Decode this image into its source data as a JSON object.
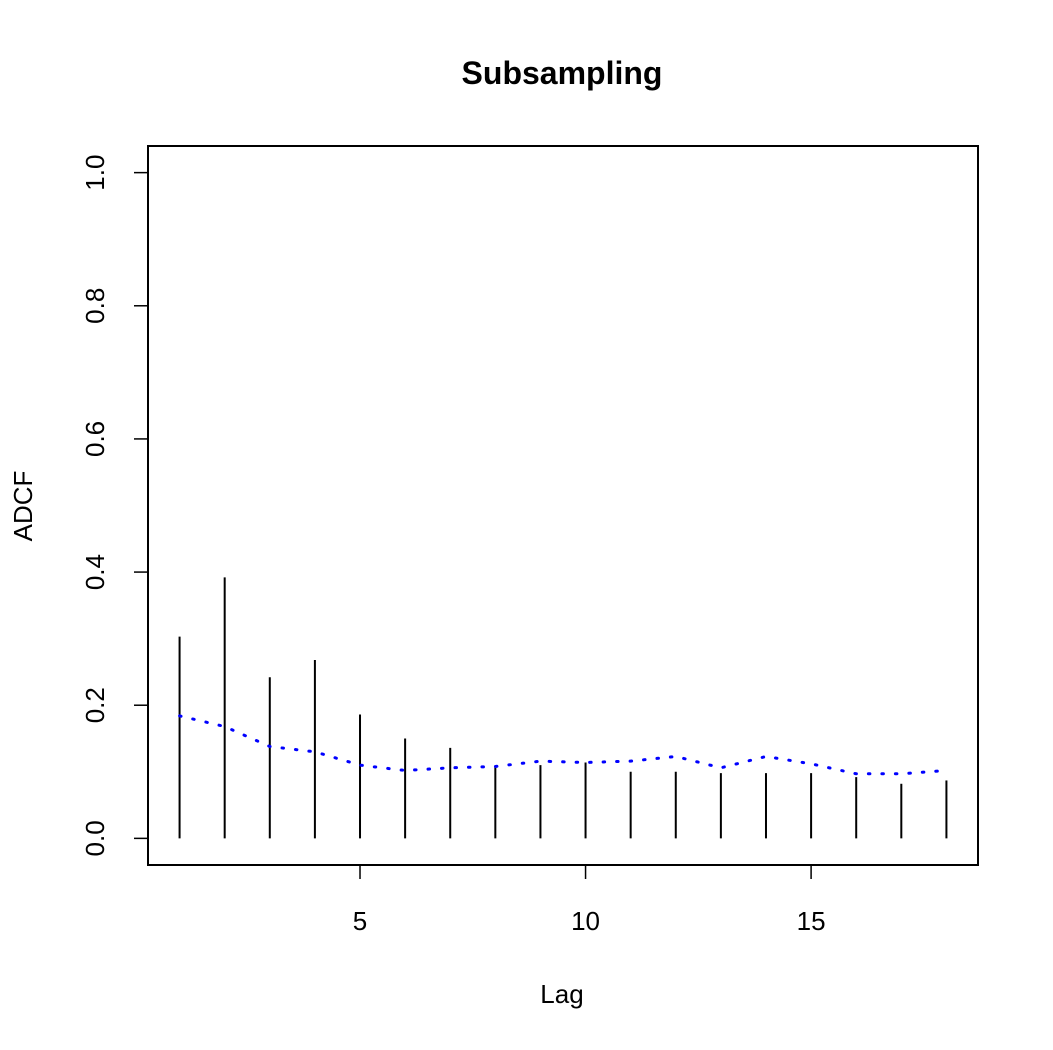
{
  "chart_data": {
    "type": "bar",
    "title": "Subsampling",
    "xlabel": "Lag",
    "ylabel": "ADCF",
    "xlim": [
      0.3,
      18.7
    ],
    "ylim": [
      -0.04,
      1.04
    ],
    "x_ticks": [
      5,
      10,
      15
    ],
    "y_ticks": [
      0.0,
      0.2,
      0.4,
      0.6,
      0.8,
      1.0
    ],
    "y_tick_labels": [
      "0.0",
      "0.2",
      "0.4",
      "0.6",
      "0.8",
      "1.0"
    ],
    "grid": false,
    "series": [
      {
        "style": "spikes",
        "color": "#000000",
        "x": [
          1,
          2,
          3,
          4,
          5,
          6,
          7,
          8,
          9,
          10,
          11,
          12,
          13,
          14,
          15,
          16,
          17,
          18
        ],
        "values": [
          0.303,
          0.392,
          0.242,
          0.268,
          0.186,
          0.15,
          0.136,
          0.109,
          0.11,
          0.114,
          0.1,
          0.1,
          0.098,
          0.098,
          0.098,
          0.092,
          0.082,
          0.087
        ]
      },
      {
        "style": "dotted-line",
        "color": "#0000ff",
        "x": [
          1,
          2,
          3,
          4,
          5,
          6,
          7,
          8,
          9,
          10,
          11,
          12,
          13,
          14,
          15,
          16,
          17,
          18
        ],
        "values": [
          0.184,
          0.168,
          0.138,
          0.13,
          0.11,
          0.102,
          0.106,
          0.108,
          0.116,
          0.114,
          0.116,
          0.123,
          0.106,
          0.123,
          0.112,
          0.097,
          0.097,
          0.102
        ]
      }
    ]
  }
}
